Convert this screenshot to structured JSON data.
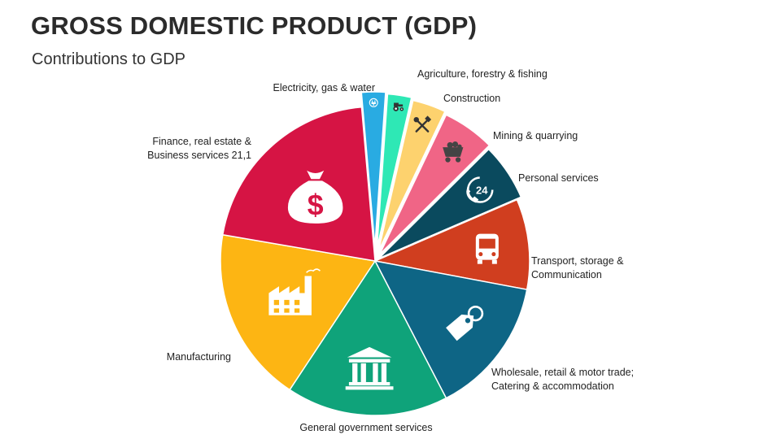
{
  "header": {
    "title": "GROSS DOMESTIC PRODUCT (GDP)",
    "subtitle": "Contributions to GDP"
  },
  "chart_data": {
    "type": "pie",
    "title": "Contributions to GDP",
    "slices": [
      {
        "label": "Electricity, gas & water",
        "label_lines": [
          "Electricity, gas & water"
        ],
        "value": 2.5,
        "color": "#29ABE2",
        "icon": "plug-icon",
        "exploded": true
      },
      {
        "label": "Agriculture, forestry & fishing",
        "label_lines": [
          "Agriculture, forestry & fishing"
        ],
        "value": 2.5,
        "color": "#2EE8B5",
        "icon": "tractor-icon",
        "exploded": true
      },
      {
        "label": "Construction",
        "label_lines": [
          "Construction"
        ],
        "value": 3.5,
        "color": "#FDD26E",
        "icon": "tools-icon",
        "exploded": true
      },
      {
        "label": "Mining & quarrying",
        "label_lines": [
          "Mining & quarrying"
        ],
        "value": 5.5,
        "color": "#F06586",
        "icon": "mine-cart-icon",
        "exploded": true
      },
      {
        "label": "Personal services",
        "label_lines": [
          "Personal services"
        ],
        "value": 6,
        "color": "#0A4A5E",
        "icon": "phone-24-icon",
        "exploded": true
      },
      {
        "label": "Transport, storage & Communication",
        "label_lines": [
          "Transport, storage &",
          "Communication"
        ],
        "value": 9.5,
        "color": "#D03E1F",
        "icon": "bus-icon",
        "exploded": false
      },
      {
        "label": "Wholesale, retail & motor trade; Catering & accommodation",
        "label_lines": [
          "Wholesale, retail & motor trade;",
          "Catering & accommodation"
        ],
        "value": 14.5,
        "color": "#0E6585",
        "icon": "price-tag-icon",
        "exploded": false
      },
      {
        "label": "General government services",
        "label_lines": [
          "General government services"
        ],
        "value": 17,
        "color": "#0FA37A",
        "icon": "government-building-icon",
        "exploded": false
      },
      {
        "label": "Manufacturing",
        "label_lines": [
          "Manufacturing"
        ],
        "value": 18.5,
        "color": "#FDB513",
        "icon": "factory-icon",
        "exploded": false
      },
      {
        "label": "Finance, real estate & Business services 21,1",
        "label_lines": [
          "Finance, real estate &",
          "Business services 21,1"
        ],
        "value": 21,
        "color": "#D61444",
        "icon": "money-bag-icon",
        "exploded": false
      }
    ]
  }
}
